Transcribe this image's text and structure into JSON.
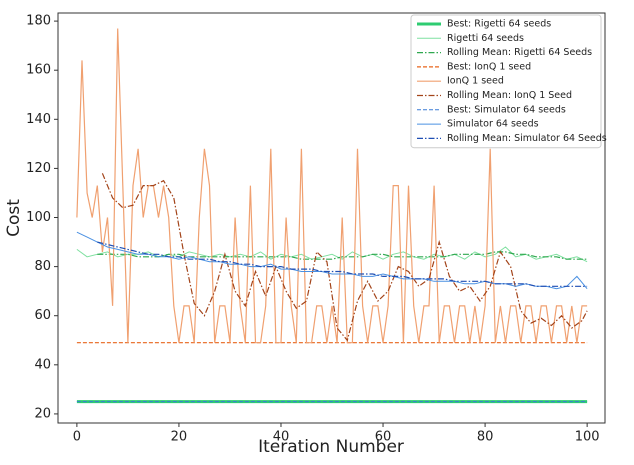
{
  "chart_data": {
    "type": "line",
    "xlabel": "Iteration Number",
    "ylabel": "Cost",
    "xlim": [
      -3.7,
      103.5
    ],
    "ylim": [
      16.3,
      183.3
    ],
    "xticks": [
      0,
      20,
      40,
      60,
      80,
      100
    ],
    "yticks": [
      20,
      40,
      60,
      80,
      100,
      120,
      140,
      160,
      180
    ],
    "legend": "upper right",
    "series": [
      {
        "name": "Best: Rigetti 64 seeds",
        "color": "#2ecc71",
        "style": "solid",
        "width": 3,
        "x": [
          0,
          100
        ],
        "values": [
          25,
          25
        ]
      },
      {
        "name": "Rigetti 64 seeds",
        "color": "#7fe0a0",
        "style": "solid",
        "width": 1,
        "x": [
          0,
          2,
          4,
          6,
          8,
          10,
          12,
          14,
          16,
          18,
          20,
          22,
          24,
          26,
          28,
          30,
          32,
          34,
          36,
          38,
          40,
          42,
          44,
          46,
          48,
          50,
          52,
          54,
          56,
          58,
          60,
          62,
          64,
          66,
          68,
          70,
          72,
          74,
          76,
          78,
          80,
          82,
          84,
          86,
          88,
          90,
          92,
          94,
          96,
          98,
          100
        ],
        "values": [
          87,
          84,
          85,
          86,
          84,
          85,
          85,
          86,
          84,
          85,
          84,
          86,
          85,
          84,
          85,
          84,
          85,
          84,
          86,
          83,
          85,
          84,
          85,
          83,
          84,
          85,
          83,
          86,
          84,
          85,
          83,
          85,
          86,
          84,
          83,
          85,
          84,
          85,
          83,
          86,
          84,
          85,
          88,
          84,
          85,
          83,
          84,
          85,
          83,
          84,
          82
        ]
      },
      {
        "name": "Rolling Mean: Rigetti 64 Seeds",
        "color": "#2fa84f",
        "style": "dashdot",
        "width": 1.2,
        "x": [
          4,
          6,
          8,
          10,
          12,
          14,
          16,
          18,
          20,
          22,
          24,
          26,
          28,
          30,
          32,
          34,
          36,
          38,
          40,
          42,
          44,
          46,
          48,
          50,
          52,
          54,
          56,
          58,
          60,
          62,
          64,
          66,
          68,
          70,
          72,
          74,
          76,
          78,
          80,
          82,
          84,
          86,
          88,
          90,
          92,
          94,
          96,
          98,
          100
        ],
        "values": [
          85,
          85,
          85,
          85,
          84,
          84,
          84,
          85,
          85,
          84,
          84,
          84,
          84,
          84,
          84,
          84,
          84,
          84,
          84,
          84,
          83,
          83,
          83,
          83,
          84,
          84,
          84,
          85,
          85,
          84,
          84,
          84,
          84,
          84,
          84,
          85,
          85,
          85,
          85,
          86,
          86,
          85,
          85,
          84,
          84,
          84,
          83,
          83,
          83
        ]
      },
      {
        "name": "Best: IonQ 1 seed",
        "color": "#e8651c",
        "style": "dashed",
        "width": 1.2,
        "x": [
          0,
          100
        ],
        "values": [
          49,
          49
        ]
      },
      {
        "name": "IonQ 1 seed",
        "color": "#f0a070",
        "style": "solid",
        "width": 1.2,
        "x": [
          0,
          1,
          2,
          3,
          4,
          5,
          6,
          7,
          8,
          9,
          10,
          11,
          12,
          13,
          14,
          15,
          16,
          17,
          18,
          19,
          20,
          21,
          22,
          23,
          24,
          25,
          26,
          27,
          28,
          29,
          30,
          31,
          32,
          33,
          34,
          35,
          36,
          37,
          38,
          39,
          40,
          41,
          42,
          43,
          44,
          45,
          46,
          47,
          48,
          49,
          50,
          51,
          52,
          53,
          54,
          55,
          56,
          57,
          58,
          59,
          60,
          61,
          62,
          63,
          64,
          65,
          66,
          67,
          68,
          69,
          70,
          71,
          72,
          73,
          74,
          75,
          76,
          77,
          78,
          79,
          80,
          81,
          82,
          83,
          84,
          85,
          86,
          87,
          88,
          89,
          90,
          91,
          92,
          93,
          94,
          95,
          96,
          97,
          98,
          99,
          100
        ],
        "values": [
          100,
          164,
          110,
          100,
          113,
          86,
          100,
          64,
          177,
          113,
          49,
          113,
          128,
          100,
          113,
          113,
          100,
          113,
          100,
          64,
          49,
          64,
          64,
          49,
          100,
          128,
          113,
          49,
          64,
          64,
          49,
          100,
          64,
          49,
          113,
          49,
          49,
          64,
          128,
          49,
          49,
          100,
          64,
          49,
          128,
          49,
          49,
          64,
          64,
          49,
          64,
          49,
          100,
          49,
          49,
          128,
          64,
          49,
          64,
          64,
          49,
          64,
          113,
          113,
          49,
          113,
          64,
          49,
          64,
          64,
          113,
          49,
          64,
          64,
          49,
          64,
          64,
          49,
          64,
          49,
          64,
          128,
          49,
          64,
          49,
          64,
          64,
          49,
          64,
          64,
          49,
          64,
          64,
          49,
          64,
          64,
          49,
          64,
          49,
          64,
          64
        ]
      },
      {
        "name": "Rolling Mean: IonQ 1 Seed",
        "color": "#a3441a",
        "style": "dashdot",
        "width": 1.2,
        "x": [
          5,
          7,
          9,
          11,
          13,
          15,
          17,
          19,
          21,
          23,
          25,
          27,
          29,
          31,
          33,
          35,
          37,
          39,
          41,
          43,
          45,
          47,
          49,
          51,
          53,
          55,
          57,
          59,
          61,
          63,
          65,
          67,
          69,
          71,
          73,
          75,
          77,
          79,
          81,
          83,
          85,
          87,
          89,
          91,
          93,
          95,
          97,
          99,
          100
        ],
        "values": [
          118,
          108,
          104,
          105,
          113,
          113,
          115,
          108,
          85,
          65,
          60,
          70,
          85,
          70,
          64,
          78,
          68,
          80,
          70,
          63,
          66,
          86,
          82,
          55,
          50,
          66,
          74,
          66,
          70,
          80,
          78,
          72,
          75,
          90,
          76,
          70,
          72,
          66,
          72,
          86,
          80,
          62,
          57,
          59,
          56,
          60,
          55,
          58,
          62
        ]
      },
      {
        "name": "Best: Simulator 64 seeds",
        "color": "#3a7bd5",
        "style": "dashed",
        "width": 1,
        "x": [
          0,
          100
        ],
        "values": [
          25,
          25
        ]
      },
      {
        "name": "Simulator 64 seeds",
        "color": "#4a90e2",
        "style": "solid",
        "width": 1,
        "x": [
          0,
          2,
          4,
          6,
          8,
          10,
          12,
          14,
          16,
          18,
          20,
          22,
          24,
          26,
          28,
          30,
          32,
          34,
          36,
          38,
          40,
          42,
          44,
          46,
          48,
          50,
          52,
          54,
          56,
          58,
          60,
          62,
          64,
          66,
          68,
          70,
          72,
          74,
          76,
          78,
          80,
          82,
          84,
          86,
          88,
          90,
          92,
          94,
          96,
          98,
          100
        ],
        "values": [
          94,
          92,
          90,
          88,
          87,
          86,
          85,
          85,
          84,
          84,
          83,
          84,
          83,
          82,
          82,
          81,
          81,
          80,
          80,
          81,
          79,
          79,
          78,
          78,
          78,
          77,
          77,
          77,
          76,
          76,
          77,
          76,
          75,
          75,
          75,
          74,
          74,
          74,
          73,
          73,
          74,
          73,
          73,
          72,
          73,
          72,
          72,
          71,
          72,
          76,
          71
        ]
      },
      {
        "name": "Rolling Mean: Simulator 64 Seeds",
        "color": "#1f4fb4",
        "style": "dashdot",
        "width": 1.2,
        "x": [
          4,
          6,
          8,
          10,
          12,
          14,
          16,
          18,
          20,
          22,
          24,
          26,
          28,
          30,
          32,
          34,
          36,
          38,
          40,
          42,
          44,
          46,
          48,
          50,
          52,
          54,
          56,
          58,
          60,
          62,
          64,
          66,
          68,
          70,
          72,
          74,
          76,
          78,
          80,
          82,
          84,
          86,
          88,
          90,
          92,
          94,
          96,
          98,
          100
        ],
        "values": [
          90,
          89,
          88,
          87,
          86,
          85,
          85,
          84,
          84,
          83,
          83,
          83,
          82,
          82,
          81,
          81,
          80,
          80,
          80,
          79,
          79,
          79,
          78,
          78,
          78,
          77,
          77,
          77,
          76,
          76,
          76,
          75,
          75,
          75,
          75,
          74,
          74,
          74,
          74,
          73,
          73,
          73,
          73,
          72,
          72,
          72,
          72,
          72,
          72
        ]
      }
    ]
  }
}
